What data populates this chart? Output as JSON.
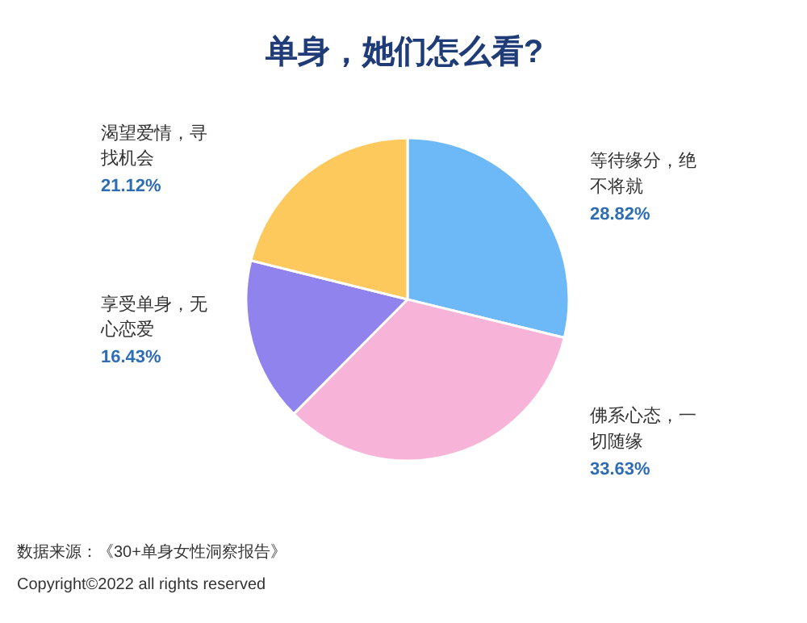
{
  "chart_data": {
    "type": "pie",
    "title": "单身，她们怎么看?",
    "categories": [
      "等待缘分，绝不将就",
      "佛系心态，一切随缘",
      "享受单身，无心恋爱",
      "渴望爱情，寻找机会"
    ],
    "values": [
      28.82,
      33.63,
      16.43,
      21.12
    ],
    "value_labels": [
      "28.82%",
      "33.63%",
      "16.43%",
      "21.12%"
    ],
    "colors": [
      "#6db8f7",
      "#f8b4d8",
      "#9183ee",
      "#fdc95c"
    ],
    "annotations": [
      "数据来源：《30+单身女性洞察报告》",
      "Copyright©2022 all rights reserved"
    ]
  }
}
